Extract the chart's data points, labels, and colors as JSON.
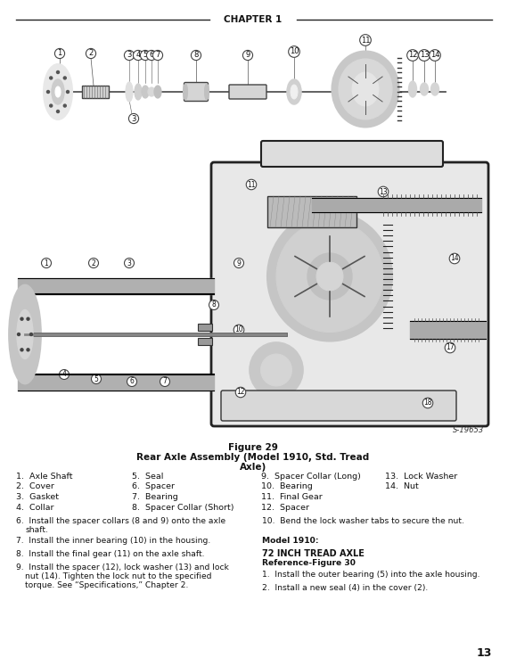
{
  "chapter_header": "CHAPTER 1",
  "figure_caption_line1": "Figure 29",
  "figure_caption_line2": "Rear Axle Assembly (Model 1910, Std. Tread",
  "figure_caption_line3": "Axle)",
  "parts_col1": [
    "1.  Axle Shaft",
    "2.  Cover",
    "3.  Gasket",
    "4.  Collar"
  ],
  "parts_col2": [
    "5.  Seal",
    "6.  Spacer",
    "7.  Bearing",
    "8.  Spacer Collar (Short)"
  ],
  "parts_col3": [
    "9.  Spacer Collar (Long)",
    "10.  Bearing",
    "11.  Final Gear",
    "12.  Spacer"
  ],
  "parts_col4": [
    "13.  Lock Washer",
    "14.  Nut",
    "",
    ""
  ],
  "instr6": "6.  Install the spacer collars (8 and 9) onto the axle\n    shaft.",
  "instr7": "7.  Install the inner bearing (10) in the housing.",
  "instr8": "8.  Install the final gear (11) on the axle shaft.",
  "instr9": "9.  Install the spacer (12), lock washer (13) and lock\n    nut (14). Tighten the lock nut to the specified\n    torque. See “Specifications,” Chapter 2.",
  "instr10": "10.  Bend the lock washer tabs to secure the nut.",
  "model_label": "Model 1910:",
  "tread_header": "72 INCH TREAD AXLE",
  "ref_label": "Reference-Figure 30",
  "instr_r1": "1.  Install the outer bearing (5) into the axle housing.",
  "instr_r2": "2.  Install a new seal (4) in the cover (2).",
  "page_number": "13",
  "s_code": "S-19653",
  "bg_color": "#ffffff",
  "text_color": "#000000",
  "header_line_color": "#333333"
}
